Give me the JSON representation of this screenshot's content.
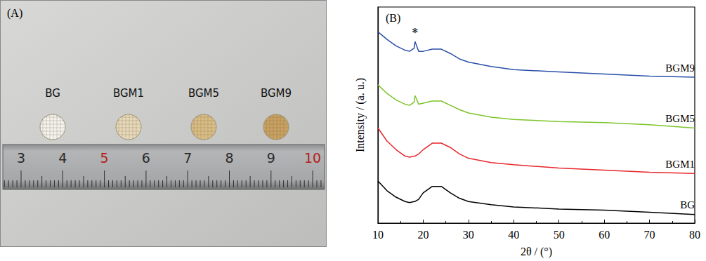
{
  "photo": {
    "label": "(A)",
    "samples": [
      "BG",
      "BGM1",
      "BGM5",
      "BGM9"
    ],
    "ruler_numbers": [
      3,
      4,
      5,
      6,
      7,
      8,
      9,
      10
    ]
  },
  "chart_data": {
    "type": "line",
    "title": "(B)",
    "x_label": "2θ / (°)",
    "y_label": "Intensity / (a. u.)",
    "x": [
      10,
      12,
      14,
      16,
      17,
      18,
      18.2,
      19,
      20,
      22,
      24,
      26,
      28,
      30,
      35,
      40,
      50,
      60,
      70,
      80
    ],
    "series": [
      {
        "name": "BG",
        "color": "#000000",
        "values": [
          19.5,
          15,
          12,
          10,
          9.5,
          10,
          10,
          11,
          14,
          17,
          17,
          14,
          11.5,
          10,
          8.5,
          7.5,
          6.5,
          6,
          5,
          4
        ]
      },
      {
        "name": "BGM1",
        "color": "#e8262b",
        "values": [
          44,
          38,
          34,
          31,
          30.5,
          31,
          31,
          32,
          34,
          37,
          37,
          35,
          32,
          30,
          28,
          27,
          25.5,
          24.5,
          23.5,
          23
        ]
      },
      {
        "name": "BGM5",
        "color": "#7dc42a",
        "values": [
          64,
          60,
          57,
          55,
          54.5,
          56,
          59,
          55,
          55.5,
          56.5,
          56.5,
          54.5,
          52.5,
          51,
          49,
          48,
          47,
          46.5,
          45.5,
          44
        ]
      },
      {
        "name": "BGM9",
        "color": "#2a4fa8",
        "values": [
          88.5,
          85,
          82,
          80,
          79.5,
          81,
          84,
          79.5,
          79.5,
          80.5,
          80.5,
          78.5,
          76,
          74.5,
          72.5,
          71,
          70,
          69,
          68,
          67.5
        ]
      }
    ],
    "annotations": [
      {
        "text": "*",
        "x": 18.2,
        "y": 88
      }
    ],
    "xlim": [
      10,
      80
    ],
    "xticks": [
      10,
      20,
      30,
      40,
      50,
      60,
      70,
      80
    ],
    "ylim": [
      0,
      100
    ],
    "tick_labels": "x",
    "grid": false
  }
}
